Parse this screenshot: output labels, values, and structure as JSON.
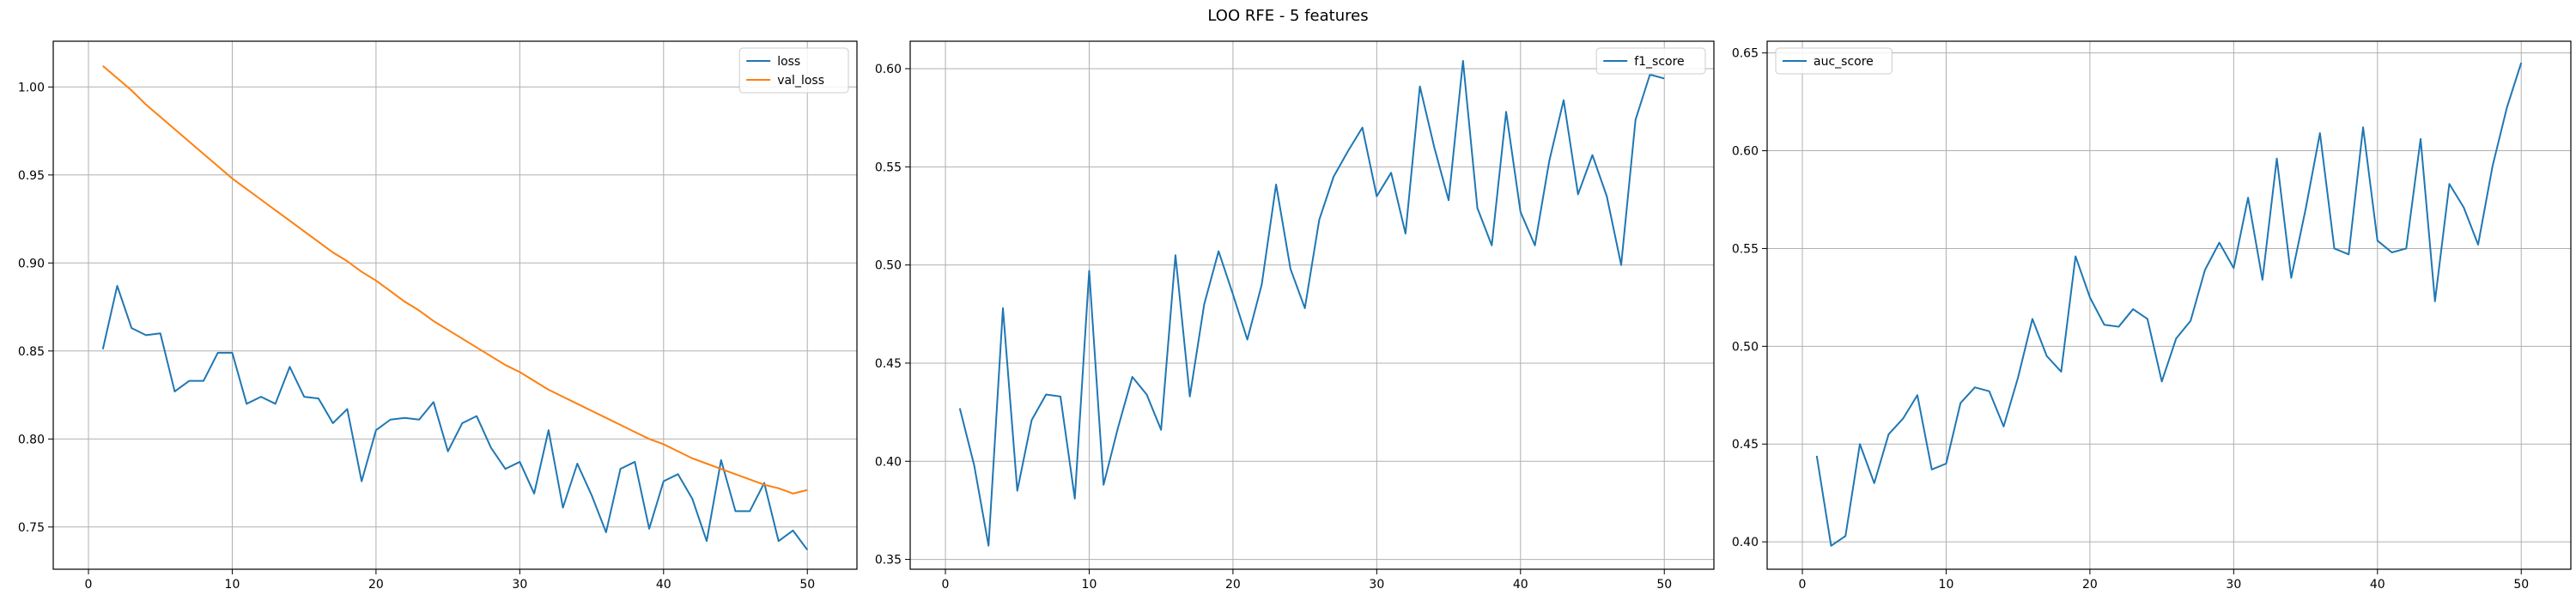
{
  "figure": {
    "title": "LOO RFE - 5 features"
  },
  "chart_data": [
    {
      "type": "line",
      "title": "",
      "xlabel": "",
      "ylabel": "",
      "xlim": [
        -2.45,
        53.45
      ],
      "ylim": [
        0.726,
        1.026
      ],
      "xticks": [
        0,
        10,
        20,
        30,
        40,
        50
      ],
      "yticks": [
        0.75,
        0.8,
        0.85,
        0.9,
        0.95,
        1.0
      ],
      "ytick_labels": [
        "0.75",
        "0.80",
        "0.85",
        "0.90",
        "0.95",
        "1.00"
      ],
      "grid": true,
      "legend_position": "top-right",
      "x": [
        1,
        2,
        3,
        4,
        5,
        6,
        7,
        8,
        9,
        10,
        11,
        12,
        13,
        14,
        15,
        16,
        17,
        18,
        19,
        20,
        21,
        22,
        23,
        24,
        25,
        26,
        27,
        28,
        29,
        30,
        31,
        32,
        33,
        34,
        35,
        36,
        37,
        38,
        39,
        40,
        41,
        42,
        43,
        44,
        45,
        46,
        47,
        48,
        49,
        50
      ],
      "series": [
        {
          "name": "loss",
          "color": "#1f77b4",
          "values": [
            0.851,
            0.887,
            0.863,
            0.859,
            0.86,
            0.827,
            0.833,
            0.833,
            0.849,
            0.849,
            0.82,
            0.824,
            0.82,
            0.841,
            0.824,
            0.823,
            0.809,
            0.817,
            0.776,
            0.805,
            0.811,
            0.812,
            0.811,
            0.821,
            0.793,
            0.809,
            0.813,
            0.795,
            0.783,
            0.787,
            0.769,
            0.805,
            0.761,
            0.786,
            0.768,
            0.747,
            0.783,
            0.787,
            0.749,
            0.776,
            0.78,
            0.766,
            0.742,
            0.788,
            0.759,
            0.759,
            0.775,
            0.742,
            0.748,
            0.737
          ]
        },
        {
          "name": "val_loss",
          "color": "#ff7f0e",
          "values": [
            1.012,
            1.005,
            0.998,
            0.99,
            0.983,
            0.976,
            0.969,
            0.962,
            0.955,
            0.948,
            0.942,
            0.936,
            0.93,
            0.924,
            0.918,
            0.912,
            0.906,
            0.901,
            0.895,
            0.89,
            0.884,
            0.878,
            0.873,
            0.867,
            0.862,
            0.857,
            0.852,
            0.847,
            0.842,
            0.838,
            0.833,
            0.828,
            0.824,
            0.82,
            0.816,
            0.812,
            0.808,
            0.804,
            0.8,
            0.797,
            0.793,
            0.789,
            0.786,
            0.783,
            0.78,
            0.777,
            0.774,
            0.772,
            0.769,
            0.771
          ]
        }
      ]
    },
    {
      "type": "line",
      "title": "",
      "xlabel": "",
      "ylabel": "",
      "xlim": [
        -2.45,
        53.45
      ],
      "ylim": [
        0.345,
        0.614
      ],
      "xticks": [
        0,
        10,
        20,
        30,
        40,
        50
      ],
      "yticks": [
        0.35,
        0.4,
        0.45,
        0.5,
        0.55,
        0.6
      ],
      "ytick_labels": [
        "0.35",
        "0.40",
        "0.45",
        "0.50",
        "0.55",
        "0.60"
      ],
      "grid": true,
      "legend_position": "top-right",
      "x": [
        1,
        2,
        3,
        4,
        5,
        6,
        7,
        8,
        9,
        10,
        11,
        12,
        13,
        14,
        15,
        16,
        17,
        18,
        19,
        20,
        21,
        22,
        23,
        24,
        25,
        26,
        27,
        28,
        29,
        30,
        31,
        32,
        33,
        34,
        35,
        36,
        37,
        38,
        39,
        40,
        41,
        42,
        43,
        44,
        45,
        46,
        47,
        48,
        49,
        50
      ],
      "series": [
        {
          "name": "f1_score",
          "color": "#1f77b4",
          "values": [
            0.427,
            0.398,
            0.357,
            0.478,
            0.385,
            0.421,
            0.434,
            0.433,
            0.381,
            0.497,
            0.388,
            0.417,
            0.443,
            0.434,
            0.416,
            0.505,
            0.433,
            0.48,
            0.507,
            0.485,
            0.462,
            0.49,
            0.541,
            0.498,
            0.478,
            0.523,
            0.545,
            0.558,
            0.57,
            0.535,
            0.547,
            0.516,
            0.591,
            0.56,
            0.533,
            0.604,
            0.529,
            0.51,
            0.578,
            0.527,
            0.51,
            0.553,
            0.584,
            0.536,
            0.556,
            0.535,
            0.5,
            0.574,
            0.597,
            0.595
          ]
        }
      ]
    },
    {
      "type": "line",
      "title": "",
      "xlabel": "",
      "ylabel": "",
      "xlim": [
        -2.45,
        53.45
      ],
      "ylim": [
        0.386,
        0.656
      ],
      "xticks": [
        0,
        10,
        20,
        30,
        40,
        50
      ],
      "yticks": [
        0.4,
        0.45,
        0.5,
        0.55,
        0.6,
        0.65
      ],
      "ytick_labels": [
        "0.40",
        "0.45",
        "0.50",
        "0.55",
        "0.60",
        "0.65"
      ],
      "grid": true,
      "legend_position": "top-left",
      "x": [
        1,
        2,
        3,
        4,
        5,
        6,
        7,
        8,
        9,
        10,
        11,
        12,
        13,
        14,
        15,
        16,
        17,
        18,
        19,
        20,
        21,
        22,
        23,
        24,
        25,
        26,
        27,
        28,
        29,
        30,
        31,
        32,
        33,
        34,
        35,
        36,
        37,
        38,
        39,
        40,
        41,
        42,
        43,
        44,
        45,
        46,
        47,
        48,
        49,
        50
      ],
      "series": [
        {
          "name": "auc_score",
          "color": "#1f77b4",
          "values": [
            0.444,
            0.398,
            0.403,
            0.45,
            0.43,
            0.455,
            0.463,
            0.475,
            0.437,
            0.44,
            0.471,
            0.479,
            0.477,
            0.459,
            0.484,
            0.514,
            0.495,
            0.487,
            0.546,
            0.525,
            0.511,
            0.51,
            0.519,
            0.514,
            0.482,
            0.504,
            0.513,
            0.539,
            0.553,
            0.54,
            0.576,
            0.534,
            0.596,
            0.535,
            0.57,
            0.609,
            0.55,
            0.547,
            0.612,
            0.554,
            0.548,
            0.55,
            0.606,
            0.523,
            0.583,
            0.571,
            0.552,
            0.592,
            0.622,
            0.645
          ]
        }
      ]
    }
  ]
}
